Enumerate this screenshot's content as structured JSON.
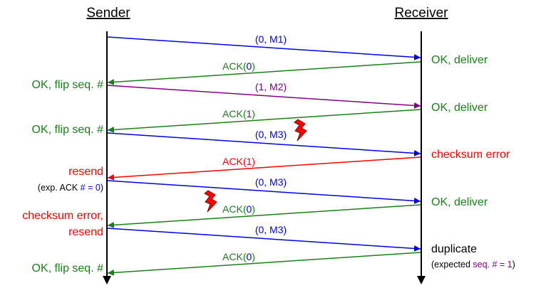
{
  "header": {
    "sender": "Sender",
    "receiver": "Receiver"
  },
  "colors": {
    "blue": "#0000e6",
    "green": "#1a7f1a",
    "purple": "#800080",
    "red": "#ff0000",
    "black": "#000000"
  },
  "messages": [
    {
      "id": "m1",
      "parts": [
        {
          "t": "(0, M1)",
          "c": "blue"
        }
      ]
    },
    {
      "id": "a1",
      "parts": [
        {
          "t": "ACK(",
          "c": "green"
        },
        {
          "t": "0",
          "c": "blue"
        },
        {
          "t": ")",
          "c": "green"
        }
      ]
    },
    {
      "id": "m2",
      "parts": [
        {
          "t": "(1, M2)",
          "c": "purple"
        }
      ]
    },
    {
      "id": "a2",
      "parts": [
        {
          "t": "ACK(",
          "c": "green"
        },
        {
          "t": "1",
          "c": "purple"
        },
        {
          "t": ")",
          "c": "green"
        }
      ]
    },
    {
      "id": "m3",
      "parts": [
        {
          "t": "(0, M3)",
          "c": "blue"
        }
      ]
    },
    {
      "id": "a3",
      "parts": [
        {
          "t": "ACK(1)",
          "c": "red"
        }
      ]
    },
    {
      "id": "m3b",
      "parts": [
        {
          "t": "(0, M3)",
          "c": "blue"
        }
      ]
    },
    {
      "id": "a4",
      "parts": [
        {
          "t": "ACK(",
          "c": "green"
        },
        {
          "t": "0",
          "c": "blue"
        },
        {
          "t": ")",
          "c": "green"
        }
      ]
    },
    {
      "id": "m3c",
      "parts": [
        {
          "t": "(0, M3)",
          "c": "blue"
        }
      ]
    },
    {
      "id": "a5",
      "parts": [
        {
          "t": "ACK(",
          "c": "green"
        },
        {
          "t": "0",
          "c": "blue"
        },
        {
          "t": ")",
          "c": "green"
        }
      ]
    }
  ],
  "sender_notes": [
    {
      "id": "s1",
      "parts": [
        {
          "t": "OK, flip seq. #",
          "c": "green"
        }
      ]
    },
    {
      "id": "s2",
      "parts": [
        {
          "t": "OK, flip seq. #",
          "c": "green"
        }
      ]
    },
    {
      "id": "s3",
      "parts": [
        {
          "t": "resend",
          "c": "red"
        }
      ]
    },
    {
      "id": "s3b",
      "small": true,
      "parts": [
        {
          "t": "(exp. ACK ",
          "c": "black"
        },
        {
          "t": "# = 0",
          "c": "blue"
        },
        {
          "t": ")",
          "c": "black"
        }
      ]
    },
    {
      "id": "s4",
      "parts": [
        {
          "t": "checksum error,",
          "c": "red"
        }
      ]
    },
    {
      "id": "s4b",
      "parts": [
        {
          "t": "resend",
          "c": "red"
        }
      ]
    },
    {
      "id": "s5",
      "parts": [
        {
          "t": "OK, flip seq. #",
          "c": "green"
        }
      ]
    }
  ],
  "receiver_notes": [
    {
      "id": "r1",
      "parts": [
        {
          "t": "OK, deliver",
          "c": "green"
        }
      ]
    },
    {
      "id": "r2",
      "parts": [
        {
          "t": "OK, deliver",
          "c": "green"
        }
      ]
    },
    {
      "id": "r3",
      "parts": [
        {
          "t": "checksum error",
          "c": "red"
        }
      ]
    },
    {
      "id": "r4",
      "parts": [
        {
          "t": "OK, deliver",
          "c": "green"
        }
      ]
    },
    {
      "id": "r5",
      "parts": [
        {
          "t": "duplicate",
          "c": "black"
        }
      ]
    },
    {
      "id": "r5b",
      "small": true,
      "parts": [
        {
          "t": "(expected ",
          "c": "black"
        },
        {
          "t": "seq. # = 1",
          "c": "purple"
        },
        {
          "t": ")",
          "c": "black"
        }
      ]
    }
  ],
  "icons": {
    "error": "lightning-bolt-icon"
  }
}
